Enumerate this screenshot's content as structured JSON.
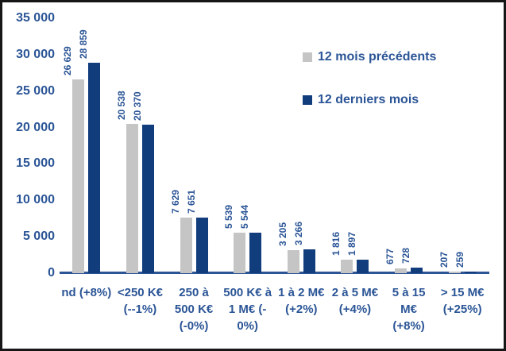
{
  "colors": {
    "text": "#2B5596",
    "axis_line": "#2D5596",
    "bar_previous": "#C5C5C5",
    "bar_last": "#123D7C",
    "frame_border": "#161616",
    "background": "#FFFFFF"
  },
  "y_axis": {
    "ticks": [
      "35 000",
      "30 000",
      "25 000",
      "20 000",
      "15 000",
      "10 000",
      "5 000",
      "0"
    ]
  },
  "chart_data": {
    "type": "bar",
    "title": "",
    "xlabel": "",
    "ylabel": "",
    "ylim": [
      0,
      35000
    ],
    "grid": false,
    "legend_position": "upper right",
    "categories": [
      "nd (+8%)",
      "<250 K€ (--1%)",
      "250 à 500 K€ (-0%)",
      "500 K€ à 1 M€ (-0%)",
      "1 à 2 M€ (+2%)",
      "2 à 5 M€ (+4%)",
      "5 à 15 M€ (+8%)",
      "> 15 M€ (+25%)"
    ],
    "category_lines": [
      [
        "nd (+8%)"
      ],
      [
        "<250 K€",
        "(--1%)"
      ],
      [
        "250 à",
        "500 K€",
        "(-0%)"
      ],
      [
        "500 K€ à",
        "1 M€ (-",
        "0%)"
      ],
      [
        "1 à 2 M€",
        "(+2%)"
      ],
      [
        "2 à 5 M€",
        "(+4%)"
      ],
      [
        "5 à 15",
        "M€",
        "(+8%)"
      ],
      [
        "> 15 M€",
        "(+25%)"
      ]
    ],
    "series": [
      {
        "name": "12 mois précédents",
        "color": "#C5C5C5",
        "values": [
          26629,
          20538,
          7629,
          5539,
          3205,
          1816,
          677,
          207
        ],
        "labels": [
          "26 629",
          "20 538",
          "7 629",
          "5 539",
          "3 205",
          "1 816",
          "677",
          "207"
        ]
      },
      {
        "name": "12 derniers mois",
        "color": "#123D7C",
        "values": [
          28859,
          20370,
          7651,
          5544,
          3266,
          1897,
          728,
          259
        ],
        "labels": [
          "28 859",
          "20 370",
          "7 651",
          "5 544",
          "3 266",
          "1 897",
          "728",
          "259"
        ]
      }
    ]
  }
}
